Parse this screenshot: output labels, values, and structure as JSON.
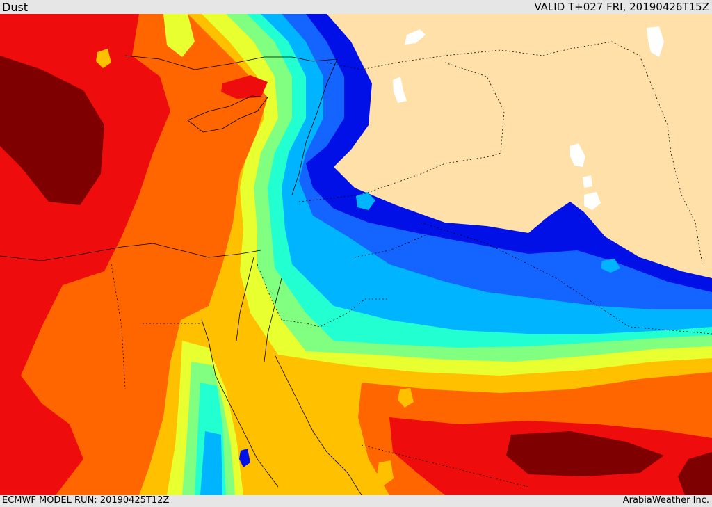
{
  "header": {
    "field_label": "Dust",
    "valid_time": "VALID T+027 FRI, 20190426T15Z"
  },
  "footer": {
    "model_run": "ECMWF MODEL RUN: 20190425T12Z",
    "credit": "ArabiaWeather Inc."
  },
  "palette": {
    "darkred": "#7f0000",
    "red": "#ee0c0c",
    "orange": "#ff6600",
    "amber": "#ffc000",
    "yellow": "#e8ff30",
    "green": "#80ff80",
    "cyan": "#22ffd0",
    "skyblue": "#00b4ff",
    "blue": "#1464ff",
    "navy": "#0010e6",
    "land_clear": "#ffe0a8",
    "water": "#ffffff",
    "border": "#000000"
  }
}
